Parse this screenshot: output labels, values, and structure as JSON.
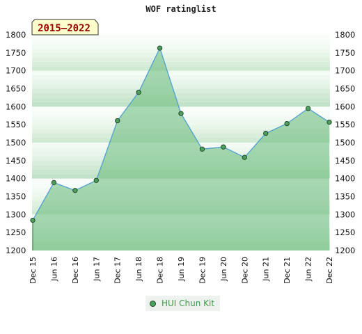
{
  "chart_data": {
    "type": "area",
    "title": "WOF ratinglist",
    "badge": "2015–2022",
    "categories": [
      "Dec 15",
      "Jun 16",
      "Dec 16",
      "Jun 17",
      "Dec 17",
      "Jun 18",
      "Dec 18",
      "Jun 19",
      "Dec 19",
      "Jun 20",
      "Dec 20",
      "Jun 21",
      "Dec 21",
      "Jun 22",
      "Dec 22"
    ],
    "series": [
      {
        "name": "HUI Chun Kit",
        "values": [
          1284,
          1389,
          1367,
          1395,
          1561,
          1640,
          1763,
          1581,
          1482,
          1488,
          1459,
          1526,
          1553,
          1595,
          1557
        ],
        "line_color": "#4f9fd0",
        "marker_color": "#4aa05a"
      }
    ],
    "ylim": [
      1200,
      1800
    ],
    "yticks": [
      1200,
      1250,
      1300,
      1350,
      1400,
      1450,
      1500,
      1550,
      1600,
      1650,
      1700,
      1750,
      1800
    ],
    "grid": true,
    "legend": "bottom-center",
    "colors": {
      "band_dark": "#c6e4cb",
      "band_light": "#e9f5ea",
      "fill": "#6fbe80"
    }
  }
}
